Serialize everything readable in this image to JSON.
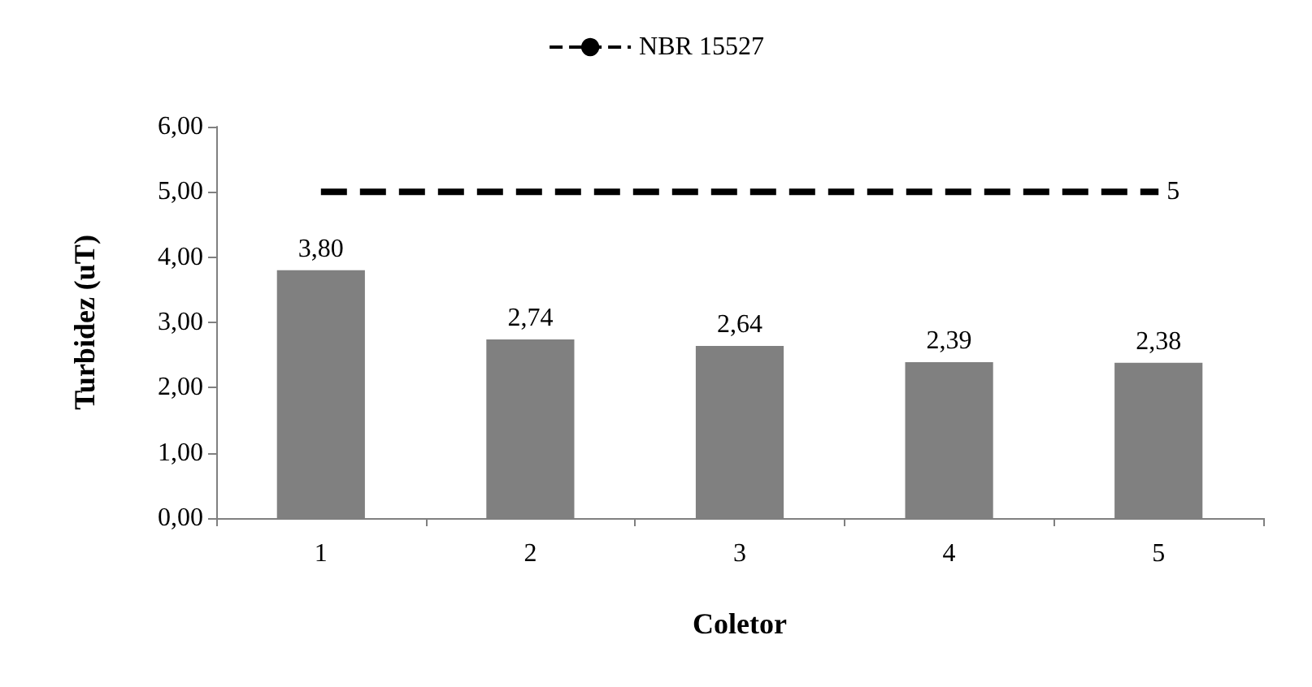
{
  "chart_data": {
    "type": "bar",
    "xlabel": "Coletor",
    "ylabel": "Turbidez (uT)",
    "categories": [
      "1",
      "2",
      "3",
      "4",
      "5"
    ],
    "series": [
      {
        "color": "#808080",
        "values": [
          3.8,
          2.74,
          2.64,
          2.39,
          2.38
        ],
        "value_labels": [
          "3,80",
          "2,74",
          "2,64",
          "2,39",
          "2,38"
        ]
      },
      {
        "type": "line",
        "name": "NBR 15527",
        "color": "#000000",
        "values": [
          5,
          5,
          5,
          5,
          5
        ],
        "value_labels": [
          null,
          null,
          null,
          null,
          "5"
        ],
        "line_style": "dashed",
        "marker": "none"
      }
    ],
    "ylim": [
      0,
      6
    ],
    "yticks": [
      {
        "value": 0,
        "label": "0,00"
      },
      {
        "value": 1,
        "label": "1,00"
      },
      {
        "value": 2,
        "label": "2,00"
      },
      {
        "value": 3,
        "label": "3,00"
      },
      {
        "value": 4,
        "label": "4,00"
      },
      {
        "value": 5,
        "label": "5,00"
      },
      {
        "value": 6,
        "label": "6,00"
      }
    ],
    "grid": false,
    "legend": "top"
  }
}
